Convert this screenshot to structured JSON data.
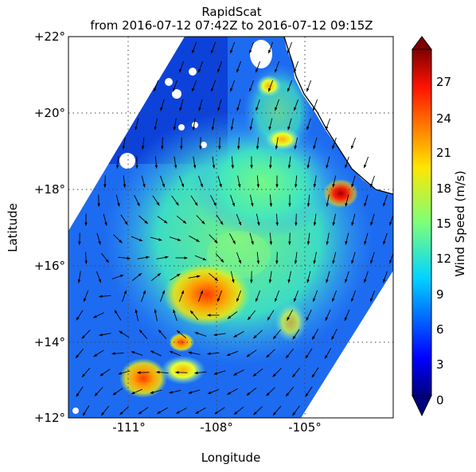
{
  "title": {
    "line1": "RapidScat",
    "line2": "from 2016-07-12 07:42Z to 2016-07-12 09:15Z"
  },
  "axes": {
    "xlabel": "Longitude",
    "ylabel": "Latitude",
    "xlim": [
      -113.5,
      -101.5
    ],
    "ylim": [
      12,
      22
    ],
    "xticks": [
      "-111°",
      "-108°",
      "-105°"
    ],
    "yticks": [
      "+22°",
      "+20°",
      "+18°",
      "+16°",
      "+14°",
      "+12°"
    ],
    "grid": "dotted"
  },
  "colorbar": {
    "label": "Wind Speed (m/s)",
    "ticks": [
      "27",
      "24",
      "21",
      "18",
      "15",
      "12",
      "9",
      "6",
      "3",
      "0"
    ],
    "range": [
      0,
      30
    ],
    "extend": "both",
    "colormap": "jet"
  },
  "colors": {
    "land": "#ffffff",
    "coastline": "#000000",
    "low_wind": "#0a3bd6",
    "max_wind": "#a00000"
  }
}
